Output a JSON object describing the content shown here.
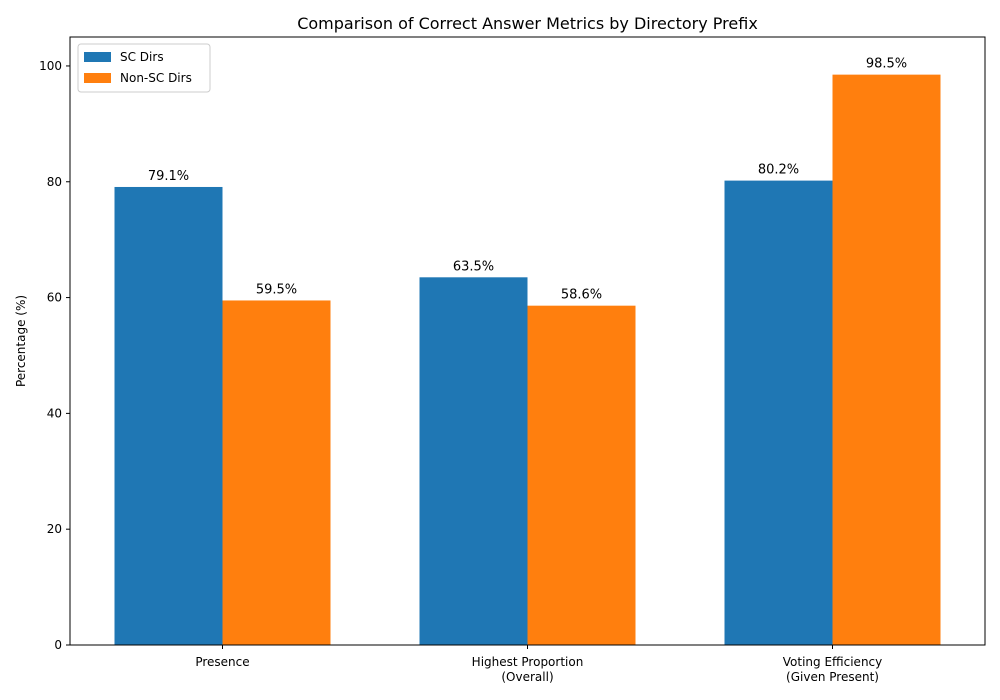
{
  "chart_data": {
    "type": "bar",
    "title": "Comparison of Correct Answer Metrics by Directory Prefix",
    "xlabel": "",
    "ylabel": "Percentage (%)",
    "ylim": [
      0,
      105
    ],
    "yticks": [
      0,
      20,
      40,
      60,
      80,
      100
    ],
    "categories": [
      "Presence",
      "Highest Proportion\n(Overall)",
      "Voting Efficiency\n(Given Present)"
    ],
    "series": [
      {
        "name": "SC Dirs",
        "color": "#1f77b4",
        "values": [
          79.1,
          63.5,
          80.2
        ],
        "labels": [
          "79.1%",
          "63.5%",
          "80.2%"
        ]
      },
      {
        "name": "Non-SC Dirs",
        "color": "#ff7f0e",
        "values": [
          59.5,
          58.6,
          98.5
        ],
        "labels": [
          "59.5%",
          "58.6%",
          "98.5%"
        ]
      }
    ],
    "legend_position": "top-left",
    "grid": false
  }
}
